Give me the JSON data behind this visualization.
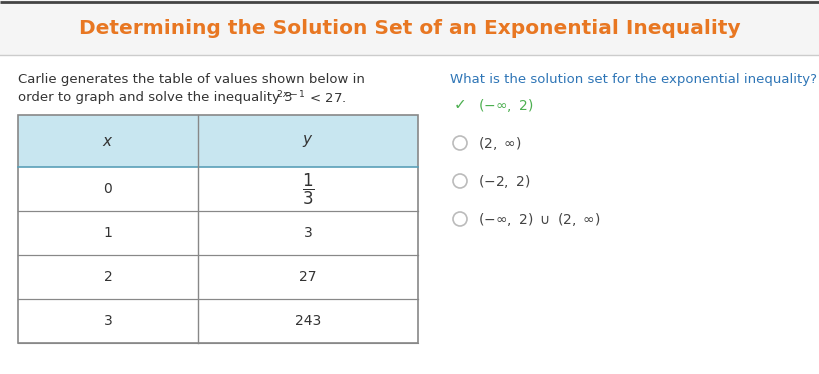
{
  "title": "Determining the Solution Set of an Exponential Inequality",
  "title_color": "#E87722",
  "title_bg_top": "#e8e8e8",
  "title_bg_bottom": "#f5f5f5",
  "title_top_border_color": "#555555",
  "title_bottom_border_color": "#cccccc",
  "body_bg_color": "#ffffff",
  "left_text_line1": "Carlie generates the table of values shown below in",
  "left_text_line2": "order to graph and solve the inequality 3",
  "table_header_bg": "#c8e6f0",
  "table_header_border": "#5aa0b8",
  "table_border": "#888888",
  "table_x_values": [
    "0",
    "1",
    "2",
    "3"
  ],
  "right_question": "What is the solution set for the exponential inequality?",
  "right_question_color": "#2e75b6",
  "options_math": [
    "(-\\infty, 2)",
    "(2, \\infty)",
    "(-2, 2)",
    "(-\\infty, 2) \\cup (2, \\infty)"
  ],
  "options_correct": [
    true,
    false,
    false,
    false
  ],
  "correct_color": "#4CAF50",
  "option_color": "#444444",
  "circle_color": "#bbbbbb",
  "font_size_title": 14.5,
  "font_size_body": 9.5,
  "font_size_table_header": 11,
  "font_size_table_data": 10,
  "font_size_options": 10,
  "font_size_question": 9.5
}
